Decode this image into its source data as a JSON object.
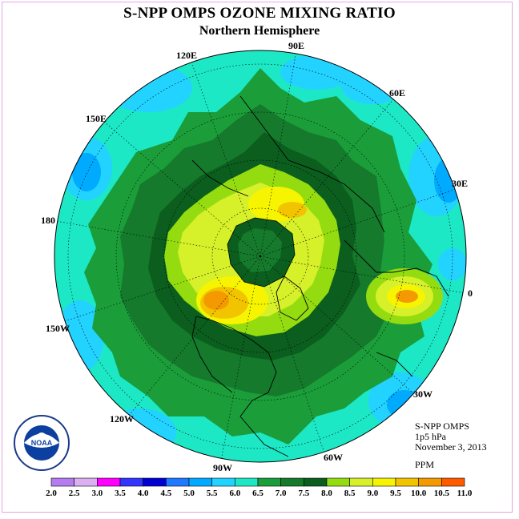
{
  "title": "S-NPP OMPS OZONE MIXING RATIO",
  "subtitle": "Northern Hemisphere",
  "info": {
    "instrument": "S-NPP OMPS",
    "level": "1p5 hPa",
    "date": "November 3, 2013",
    "units": "PPM"
  },
  "longitude_labels": [
    "90E",
    "60E",
    "30E",
    "0",
    "30W",
    "60W",
    "90W",
    "120W",
    "150W",
    "180",
    "150E",
    "120E"
  ],
  "colorbar": {
    "ticks": [
      "2.0",
      "2.5",
      "3.0",
      "3.5",
      "4.0",
      "4.5",
      "5.0",
      "5.5",
      "6.0",
      "6.5",
      "7.0",
      "7.5",
      "8.0",
      "8.5",
      "9.0",
      "9.5",
      "10.0",
      "10.5",
      "11.0"
    ],
    "colors": [
      "#b57cf0",
      "#dcb0f0",
      "#ff00ff",
      "#3434ff",
      "#0000d0",
      "#1f78ff",
      "#00aaff",
      "#22d2ff",
      "#1de8c6",
      "#1b9e3a",
      "#157a2c",
      "#0b5e1e",
      "#94dc10",
      "#d6f02a",
      "#f6f400",
      "#f2c400",
      "#f49a00",
      "#ff5a00",
      "#e80000",
      "#7a5030"
    ]
  },
  "colors": {
    "ocean_fill": "#22ddc8",
    "polar_vortex": "#0b5e1e",
    "max_color": "#f49a00"
  },
  "logo_text": "NOAA"
}
